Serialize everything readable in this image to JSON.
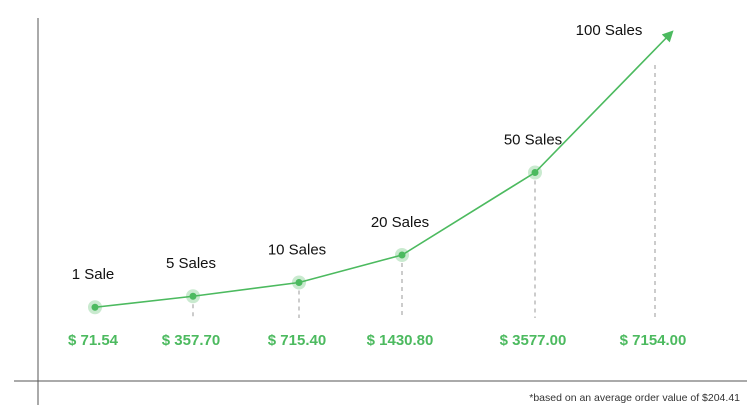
{
  "chart_data": {
    "type": "line",
    "categories": [
      "1 Sale",
      "5 Sales",
      "10 Sales",
      "20 Sales",
      "50 Sales",
      "100 Sales"
    ],
    "values": [
      71.54,
      357.7,
      715.4,
      1430.8,
      3577.0,
      7154.0
    ],
    "value_labels": [
      "$ 71.54",
      "$ 357.70",
      "$ 715.40",
      "$ 1430.80",
      "$ 3577.00",
      "$ 7154.00"
    ],
    "color": "#4cba5f",
    "footnote": "*based on an average order value of $204.41"
  }
}
